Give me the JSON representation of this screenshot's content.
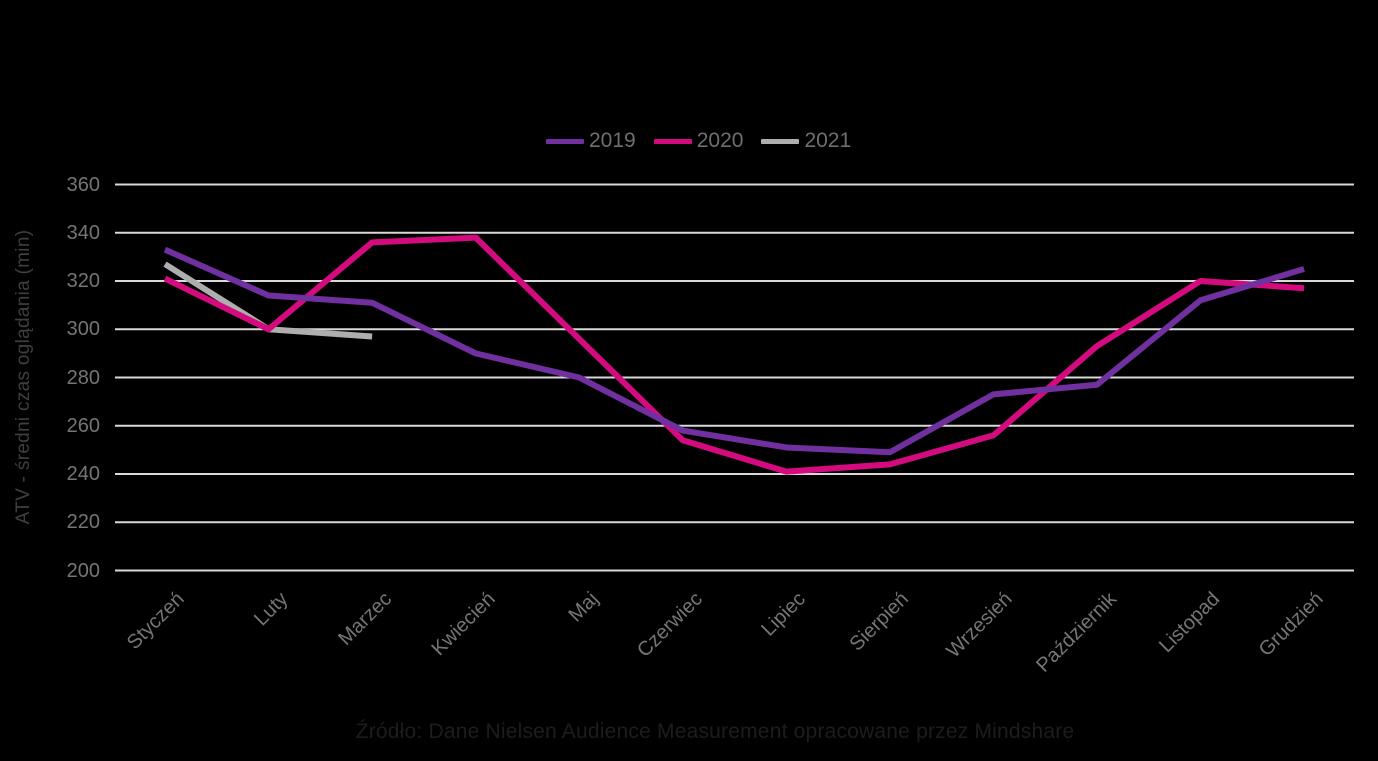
{
  "chart_data": {
    "type": "line",
    "title": "",
    "xlabel": "",
    "ylabel": "ATV - średni czas oglądania (min)",
    "ylim": [
      200,
      360
    ],
    "ytick_step": 20,
    "yticks": [
      200,
      220,
      240,
      260,
      280,
      300,
      320,
      340,
      360
    ],
    "grid": "horizontal",
    "legend_position": "top-center",
    "categories": [
      "Styczeń",
      "Luty",
      "Marzec",
      "Kwiecień",
      "Maj",
      "Czerwiec",
      "Lipiec",
      "Sierpień",
      "Wrzesień",
      "Październik",
      "Listopad",
      "Grudzień"
    ],
    "series": [
      {
        "name": "2019",
        "color": "#7030a0",
        "values": [
          333,
          314,
          311,
          290,
          280,
          258,
          251,
          249,
          273,
          277,
          312,
          325
        ]
      },
      {
        "name": "2020",
        "color": "#d30b7e",
        "values": [
          321,
          300,
          336,
          338,
          296,
          254,
          241,
          244,
          256,
          293,
          320,
          317
        ]
      },
      {
        "name": "2021",
        "color": "#aeaeae",
        "values": [
          327,
          300,
          297,
          null,
          null,
          null,
          null,
          null,
          null,
          null,
          null,
          null
        ]
      }
    ]
  },
  "footer": {
    "source_text": "Źródło: Dane Nielsen Audience Measurement opracowane przez Mindshare"
  },
  "colors": {
    "background": "#000000",
    "gridline": "#d9d9d9",
    "tick_label": "#757575",
    "axis_title": "#3f3f3f",
    "legend_label": "#6f6f6f",
    "source_text": "#1d1d1d"
  }
}
